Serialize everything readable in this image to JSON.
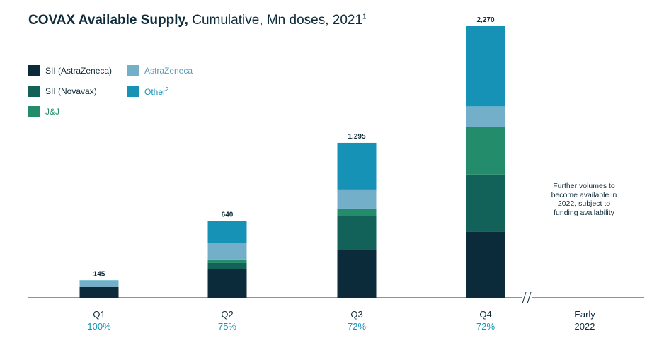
{
  "title": {
    "bold": "COVAX Available Supply,",
    "rest": " Cumulative, Mn doses, 2021",
    "footnote": "1"
  },
  "legend": [
    {
      "label": "SII (AstraZeneca)",
      "sup": "",
      "color": "#0b2a3a"
    },
    {
      "label": "AstraZeneca",
      "sup": "",
      "color": "#74afc9"
    },
    {
      "label": "SII (Novavax)",
      "sup": "",
      "color": "#12625a"
    },
    {
      "label": "Other",
      "sup": "2",
      "color": "#1592b5"
    },
    {
      "label": "J&J",
      "sup": "",
      "color": "#238c6b"
    }
  ],
  "chart_data": {
    "type": "bar",
    "stacked": true,
    "categories": [
      "Q1",
      "Q2",
      "Q3",
      "Q4"
    ],
    "subcategory_labels": [
      "100%",
      "75%",
      "72%",
      "72%"
    ],
    "totals": [
      145,
      640,
      1295,
      2270
    ],
    "series": [
      {
        "name": "SII (AstraZeneca)",
        "color": "#0b2a3a",
        "values": [
          90,
          240,
          400,
          550
        ]
      },
      {
        "name": "SII (Novavax)",
        "color": "#12625a",
        "values": [
          0,
          50,
          280,
          480
        ]
      },
      {
        "name": "J&J",
        "color": "#238c6b",
        "values": [
          0,
          30,
          65,
          400
        ]
      },
      {
        "name": "AstraZeneca",
        "color": "#74afc9",
        "values": [
          50,
          140,
          160,
          170
        ]
      },
      {
        "name": "Other",
        "color": "#1592b5",
        "values": [
          5,
          180,
          390,
          670
        ]
      }
    ],
    "extra_category": {
      "label": "Early 2022"
    },
    "annotation": "Further volumes to become available in 2022, subject to funding availability",
    "ylim": [
      0,
      2270
    ],
    "axis_break": true,
    "grid": false
  }
}
